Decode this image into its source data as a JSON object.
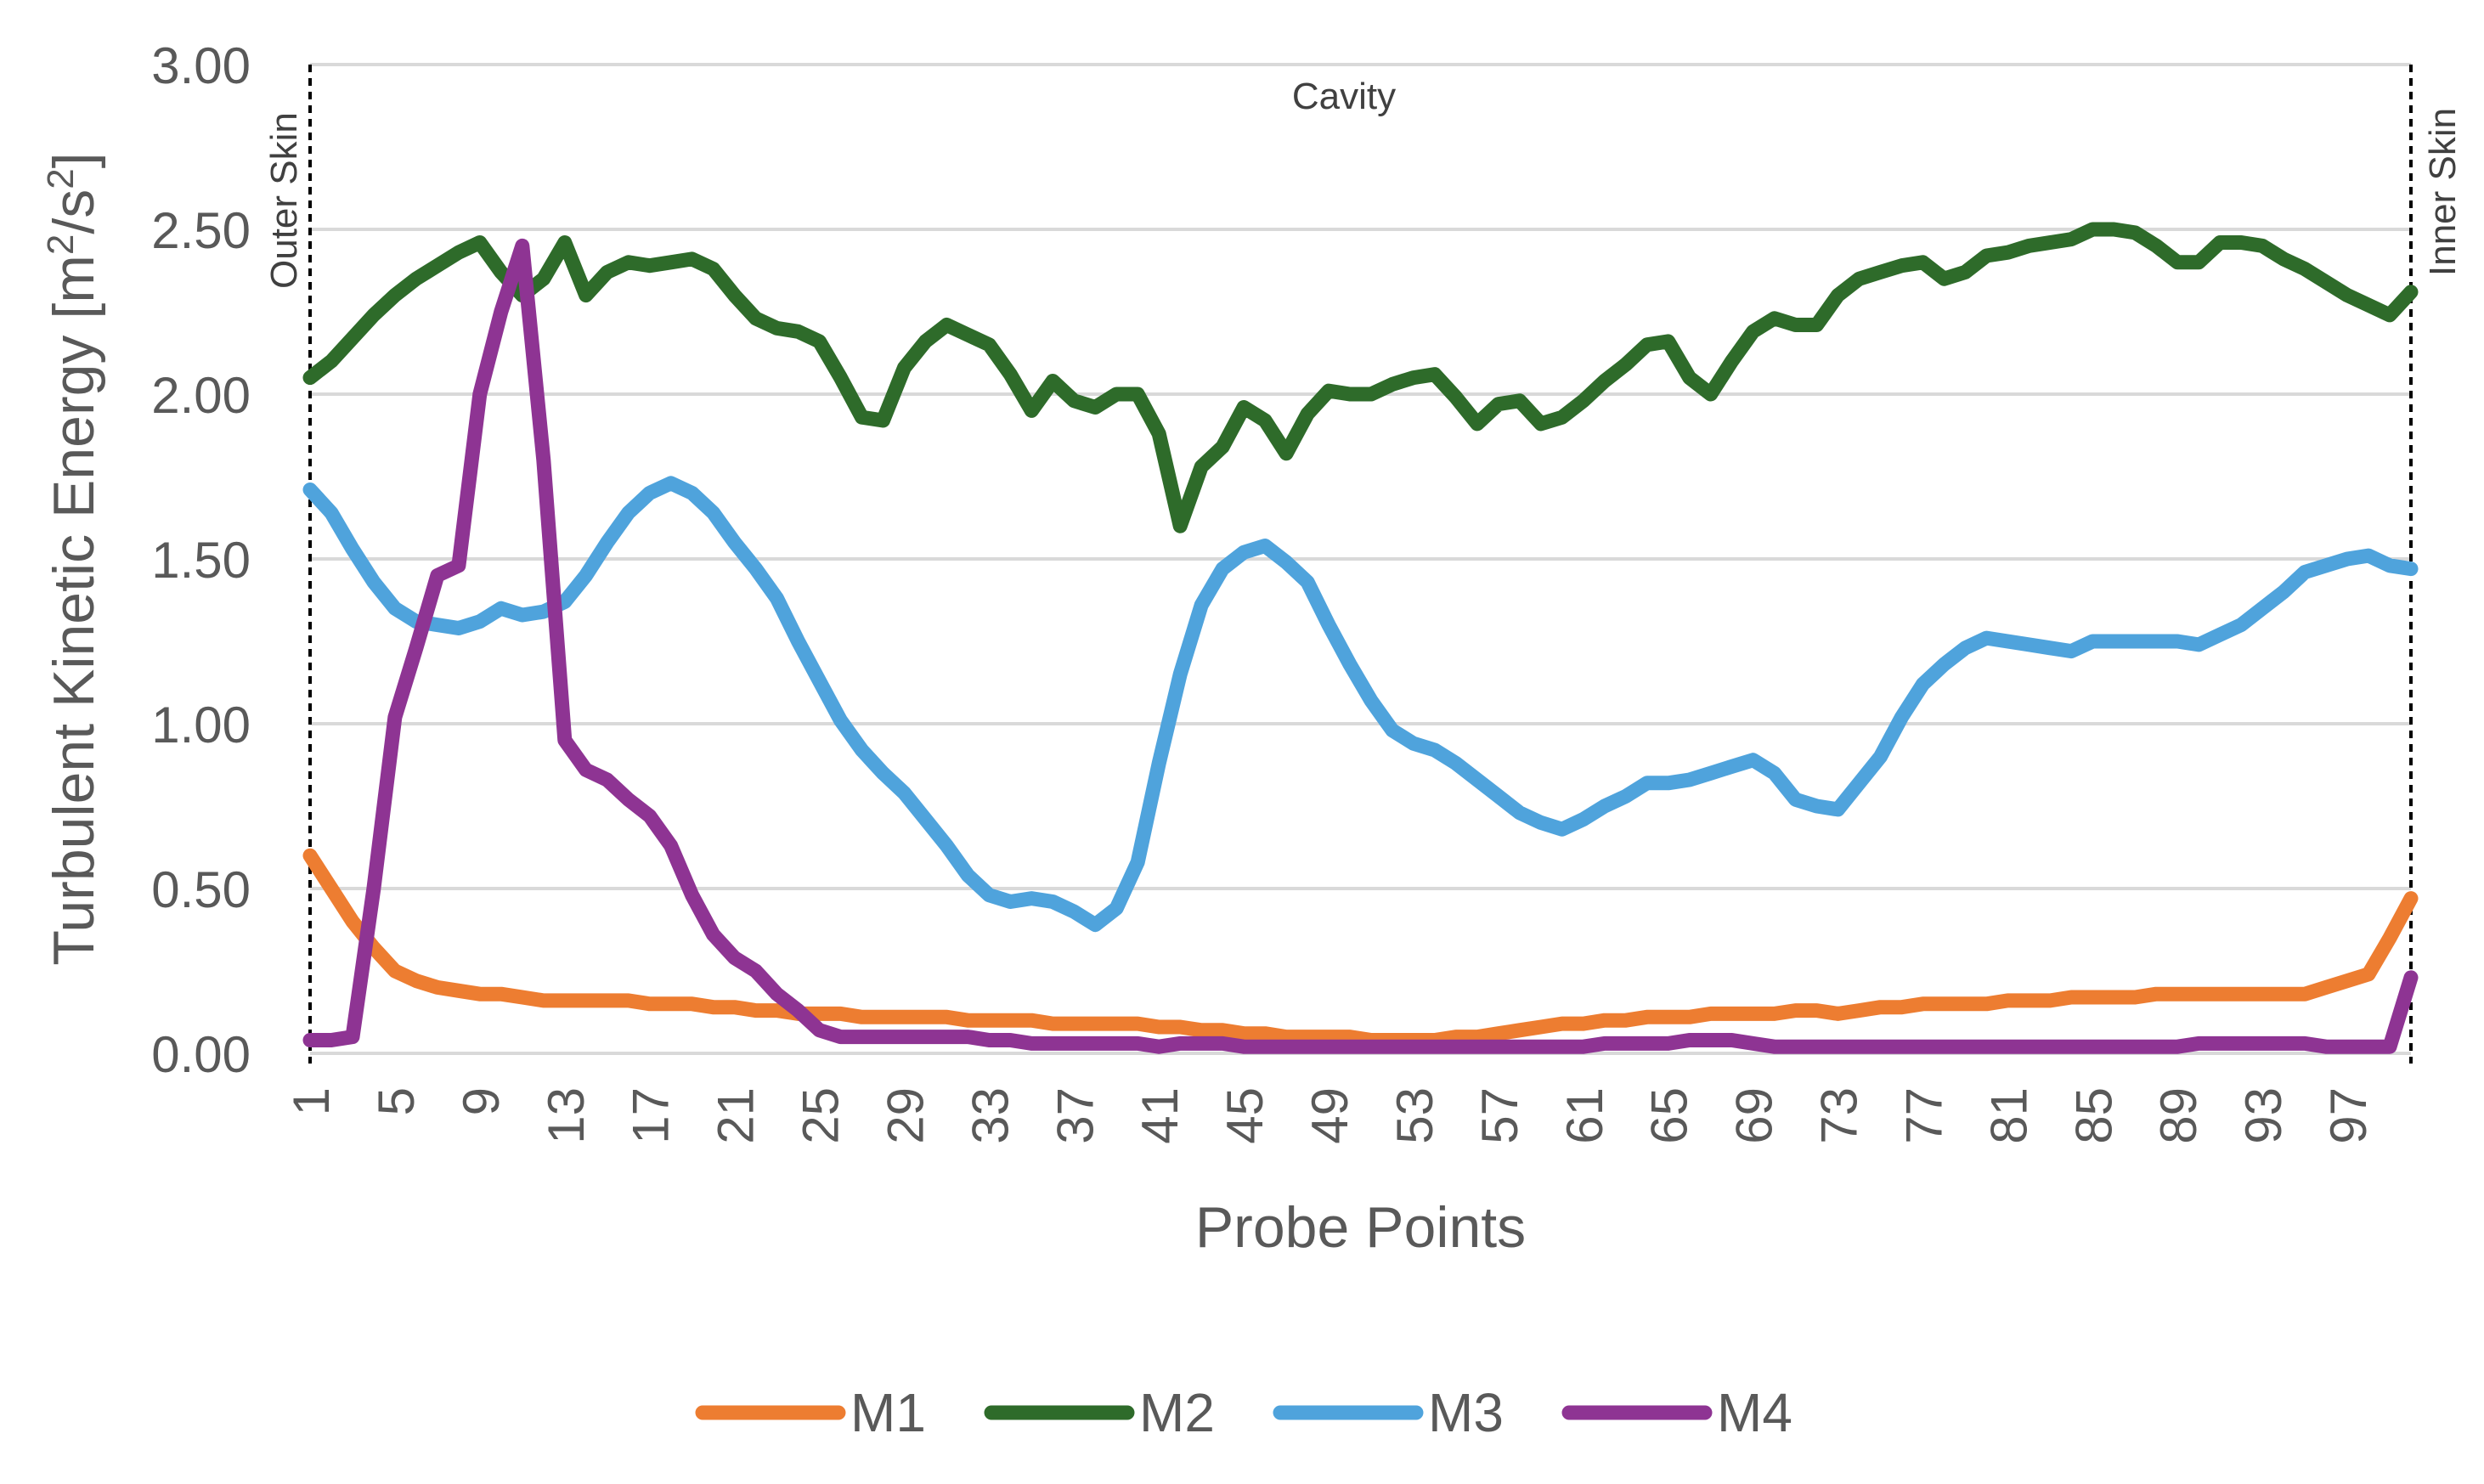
{
  "chart_data": {
    "type": "line",
    "xlabel": "Probe Points",
    "ylabel_main": "Turbulent Kinetic Energy [m",
    "ylabel_sup1": "2",
    "ylabel_mid": "/s",
    "ylabel_sup2": "2",
    "ylabel_end": "]",
    "ylim": [
      0,
      3
    ],
    "yticks": [
      "0.00",
      "0.50",
      "1.00",
      "1.50",
      "2.00",
      "2.50",
      "3.00"
    ],
    "x_range": [
      1,
      100
    ],
    "xticks": [
      "1",
      "5",
      "9",
      "13",
      "17",
      "21",
      "25",
      "29",
      "33",
      "37",
      "41",
      "45",
      "49",
      "53",
      "57",
      "61",
      "65",
      "69",
      "73",
      "77",
      "81",
      "85",
      "89",
      "93",
      "97"
    ],
    "grid": true,
    "legend_position": "bottom",
    "annotations": {
      "left_marker": "Outer Skin",
      "right_marker": "Inner Skin",
      "center": "Cavity"
    },
    "series": [
      {
        "name": "M1",
        "color": "#ED7D31",
        "values": [
          0.6,
          0.5,
          0.4,
          0.32,
          0.25,
          0.22,
          0.2,
          0.19,
          0.18,
          0.18,
          0.17,
          0.16,
          0.16,
          0.16,
          0.16,
          0.16,
          0.15,
          0.15,
          0.15,
          0.14,
          0.14,
          0.13,
          0.13,
          0.12,
          0.12,
          0.12,
          0.11,
          0.11,
          0.11,
          0.11,
          0.11,
          0.1,
          0.1,
          0.1,
          0.1,
          0.09,
          0.09,
          0.09,
          0.09,
          0.09,
          0.08,
          0.08,
          0.07,
          0.07,
          0.06,
          0.06,
          0.05,
          0.05,
          0.05,
          0.05,
          0.04,
          0.04,
          0.04,
          0.04,
          0.05,
          0.05,
          0.06,
          0.07,
          0.08,
          0.09,
          0.09,
          0.1,
          0.1,
          0.11,
          0.11,
          0.11,
          0.12,
          0.12,
          0.12,
          0.12,
          0.13,
          0.13,
          0.12,
          0.13,
          0.14,
          0.14,
          0.15,
          0.15,
          0.15,
          0.15,
          0.16,
          0.16,
          0.16,
          0.17,
          0.17,
          0.17,
          0.17,
          0.18,
          0.18,
          0.18,
          0.18,
          0.18,
          0.18,
          0.18,
          0.18,
          0.2,
          0.22,
          0.24,
          0.35,
          0.47
        ]
      },
      {
        "name": "M2",
        "color": "#2E6B2A",
        "values": [
          2.05,
          2.1,
          2.17,
          2.24,
          2.3,
          2.35,
          2.39,
          2.43,
          2.46,
          2.37,
          2.3,
          2.35,
          2.46,
          2.3,
          2.37,
          2.4,
          2.39,
          2.4,
          2.41,
          2.38,
          2.3,
          2.23,
          2.2,
          2.19,
          2.16,
          2.05,
          1.93,
          1.92,
          2.08,
          2.16,
          2.21,
          2.18,
          2.15,
          2.06,
          1.95,
          2.04,
          1.98,
          1.96,
          2.0,
          2.0,
          1.88,
          1.6,
          1.78,
          1.84,
          1.96,
          1.92,
          1.82,
          1.94,
          2.01,
          2.0,
          2.0,
          2.03,
          2.05,
          2.06,
          1.99,
          1.91,
          1.97,
          1.98,
          1.91,
          1.93,
          1.98,
          2.04,
          2.09,
          2.15,
          2.16,
          2.05,
          2.0,
          2.1,
          2.19,
          2.23,
          2.21,
          2.21,
          2.3,
          2.35,
          2.37,
          2.39,
          2.4,
          2.35,
          2.37,
          2.42,
          2.43,
          2.45,
          2.46,
          2.47,
          2.5,
          2.5,
          2.49,
          2.45,
          2.4,
          2.4,
          2.46,
          2.46,
          2.45,
          2.41,
          2.38,
          2.34,
          2.3,
          2.27,
          2.24,
          2.31
        ]
      },
      {
        "name": "M3",
        "color": "#4FA3DC",
        "values": [
          1.71,
          1.64,
          1.53,
          1.43,
          1.35,
          1.31,
          1.3,
          1.29,
          1.31,
          1.35,
          1.33,
          1.34,
          1.37,
          1.45,
          1.55,
          1.64,
          1.7,
          1.73,
          1.7,
          1.64,
          1.55,
          1.47,
          1.38,
          1.25,
          1.13,
          1.01,
          0.92,
          0.85,
          0.79,
          0.71,
          0.63,
          0.54,
          0.48,
          0.46,
          0.47,
          0.46,
          0.43,
          0.39,
          0.44,
          0.58,
          0.88,
          1.15,
          1.36,
          1.47,
          1.52,
          1.54,
          1.49,
          1.43,
          1.3,
          1.18,
          1.07,
          0.98,
          0.94,
          0.92,
          0.88,
          0.83,
          0.78,
          0.73,
          0.7,
          0.68,
          0.71,
          0.75,
          0.78,
          0.82,
          0.82,
          0.83,
          0.85,
          0.87,
          0.89,
          0.85,
          0.77,
          0.75,
          0.74,
          0.82,
          0.9,
          1.02,
          1.12,
          1.18,
          1.23,
          1.26,
          1.25,
          1.24,
          1.23,
          1.22,
          1.25,
          1.25,
          1.25,
          1.25,
          1.25,
          1.24,
          1.27,
          1.3,
          1.35,
          1.4,
          1.46,
          1.48,
          1.5,
          1.51,
          1.48,
          1.47
        ]
      },
      {
        "name": "M4",
        "color": "#8E3493",
        "values": [
          0.04,
          0.04,
          0.05,
          0.5,
          1.02,
          1.23,
          1.45,
          1.48,
          2.0,
          2.25,
          2.45,
          1.8,
          0.95,
          0.86,
          0.83,
          0.77,
          0.72,
          0.63,
          0.48,
          0.36,
          0.29,
          0.25,
          0.18,
          0.13,
          0.07,
          0.05,
          0.05,
          0.05,
          0.05,
          0.05,
          0.05,
          0.05,
          0.04,
          0.04,
          0.03,
          0.03,
          0.03,
          0.03,
          0.03,
          0.03,
          0.02,
          0.03,
          0.03,
          0.03,
          0.02,
          0.02,
          0.02,
          0.02,
          0.02,
          0.02,
          0.02,
          0.02,
          0.02,
          0.02,
          0.02,
          0.02,
          0.02,
          0.02,
          0.02,
          0.02,
          0.02,
          0.03,
          0.03,
          0.03,
          0.03,
          0.04,
          0.04,
          0.04,
          0.03,
          0.02,
          0.02,
          0.02,
          0.02,
          0.02,
          0.02,
          0.02,
          0.02,
          0.02,
          0.02,
          0.02,
          0.02,
          0.02,
          0.02,
          0.02,
          0.02,
          0.02,
          0.02,
          0.02,
          0.02,
          0.03,
          0.03,
          0.03,
          0.03,
          0.03,
          0.03,
          0.02,
          0.02,
          0.02,
          0.02,
          0.23
        ]
      }
    ]
  }
}
